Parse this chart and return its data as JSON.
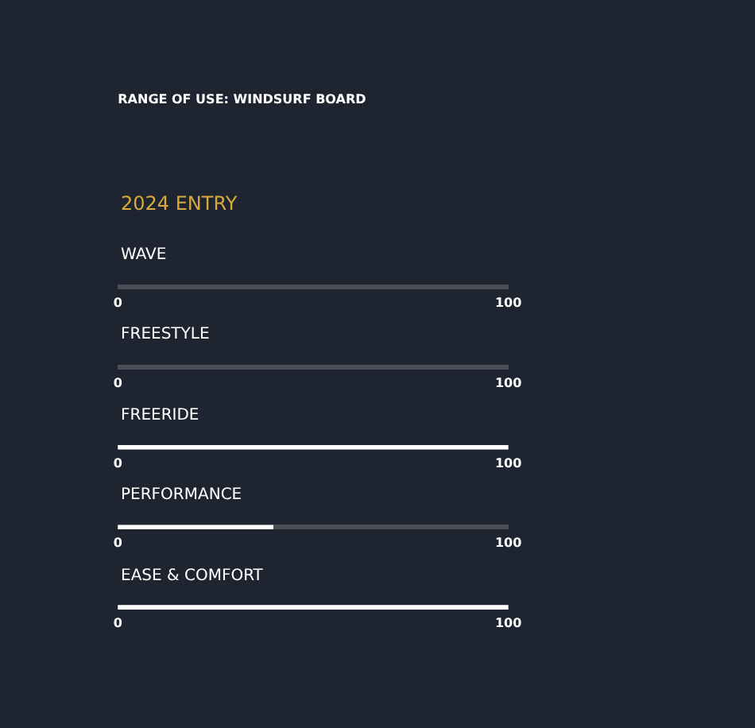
{
  "chart_data": [
    {
      "type": "bar",
      "orientation": "horizontal",
      "title": "RANGE OF USE: WINDSURF BOARD",
      "subtitle": "2024 ENTRY",
      "categories": [
        "WAVE"
      ],
      "values": [
        0
      ],
      "color": "#ffffff",
      "xlim": [
        0,
        100
      ],
      "xticks": [
        0,
        100
      ]
    },
    {
      "type": "bar",
      "orientation": "horizontal",
      "categories": [
        "FREESTYLE"
      ],
      "values": [
        0
      ],
      "color": "#ffffff",
      "xlim": [
        0,
        100
      ],
      "xticks": [
        0,
        100
      ]
    },
    {
      "type": "bar",
      "orientation": "horizontal",
      "categories": [
        "FREERIDE"
      ],
      "values": [
        100
      ],
      "color": "#ffffff",
      "xlim": [
        0,
        100
      ],
      "xticks": [
        0,
        100
      ]
    },
    {
      "type": "bar",
      "orientation": "horizontal",
      "categories": [
        "PERFORMANCE"
      ],
      "values": [
        40
      ],
      "color": "#ffffff",
      "xlim": [
        0,
        100
      ],
      "xticks": [
        0,
        100
      ]
    },
    {
      "type": "bar",
      "orientation": "horizontal",
      "categories": [
        "EASE & COMFORT"
      ],
      "values": [
        100
      ],
      "color": "#ffffff",
      "xlim": [
        0,
        100
      ],
      "xticks": [
        0,
        100
      ]
    }
  ]
}
